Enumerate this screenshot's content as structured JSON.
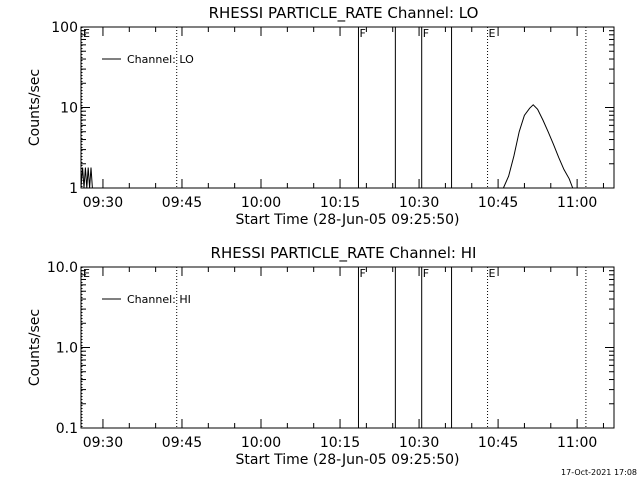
{
  "page": {
    "stamp": "17-Oct-2021 17:08"
  },
  "chart_data": [
    {
      "type": "line",
      "title": "RHESSI PARTICLE_RATE Channel: LO",
      "xlabel": "Start Time (28-Jun-05 09:25:50)",
      "ylabel": "Counts/sec",
      "yscale": "log",
      "ylim": [
        1,
        100
      ],
      "xlim": [
        "09:25:50",
        "11:07:00"
      ],
      "x_tick_labels": [
        "09:30",
        "09:45",
        "10:00",
        "10:15",
        "10:30",
        "10:45",
        "11:00"
      ],
      "y_tick_labels": [
        "1",
        "10",
        "100"
      ],
      "grid": false,
      "legend": {
        "position": "top-left",
        "entries": [
          "Channel: LO"
        ]
      },
      "markers": [
        {
          "label": "E",
          "time": "09:25:50",
          "style": "dotted"
        },
        {
          "label": "",
          "time": "09:44:00",
          "style": "dotted"
        },
        {
          "label": "F",
          "time": "10:18:30",
          "style": "solid"
        },
        {
          "label": "",
          "time": "10:25:30",
          "style": "solid"
        },
        {
          "label": "F",
          "time": "10:30:30",
          "style": "solid"
        },
        {
          "label": "",
          "time": "10:36:10",
          "style": "solid"
        },
        {
          "label": "E",
          "time": "10:43:00",
          "style": "dotted"
        },
        {
          "label": "",
          "time": "11:01:40",
          "style": "dotted"
        }
      ],
      "series": [
        {
          "name": "Channel: LO",
          "segments": [
            {
              "x": [
                "09:25:50",
                "09:26:08",
                "09:26:24",
                "09:26:40",
                "09:26:56",
                "09:27:12",
                "09:27:28",
                "09:27:44",
                "09:28:00",
                "09:28:10"
              ],
              "y": [
                1,
                1.8,
                1,
                1.8,
                1,
                1.8,
                1,
                1.8,
                1,
                1
              ]
            },
            {
              "x": [
                "10:46:00",
                "10:47:00",
                "10:48:00",
                "10:49:00",
                "10:50:00",
                "10:51:00",
                "10:51:40",
                "10:52:30",
                "10:53:30",
                "10:54:30",
                "10:55:30",
                "10:56:30",
                "10:57:30",
                "10:58:30",
                "10:59:10"
              ],
              "y": [
                1,
                1.4,
                2.5,
                5,
                8,
                9.8,
                10.8,
                9.5,
                7,
                5,
                3.5,
                2.4,
                1.7,
                1.3,
                1
              ]
            }
          ]
        }
      ]
    },
    {
      "type": "line",
      "title": "RHESSI PARTICLE_RATE Channel: HI",
      "xlabel": "Start Time (28-Jun-05 09:25:50)",
      "ylabel": "Counts/sec",
      "yscale": "log",
      "ylim": [
        0.1,
        10
      ],
      "xlim": [
        "09:25:50",
        "11:07:00"
      ],
      "x_tick_labels": [
        "09:30",
        "09:45",
        "10:00",
        "10:15",
        "10:30",
        "10:45",
        "11:00"
      ],
      "y_tick_labels": [
        "0.1",
        "1.0",
        "10.0"
      ],
      "grid": false,
      "legend": {
        "position": "top-left",
        "entries": [
          "Channel: HI"
        ]
      },
      "markers": [
        {
          "label": "E",
          "time": "09:25:50",
          "style": "dotted"
        },
        {
          "label": "",
          "time": "09:44:00",
          "style": "dotted"
        },
        {
          "label": "F",
          "time": "10:18:30",
          "style": "solid"
        },
        {
          "label": "",
          "time": "10:25:30",
          "style": "solid"
        },
        {
          "label": "F",
          "time": "10:30:30",
          "style": "solid"
        },
        {
          "label": "",
          "time": "10:36:10",
          "style": "solid"
        },
        {
          "label": "E",
          "time": "10:43:00",
          "style": "dotted"
        },
        {
          "label": "",
          "time": "11:01:40",
          "style": "dotted"
        }
      ],
      "series": [
        {
          "name": "Channel: HI",
          "segments": []
        }
      ]
    }
  ]
}
